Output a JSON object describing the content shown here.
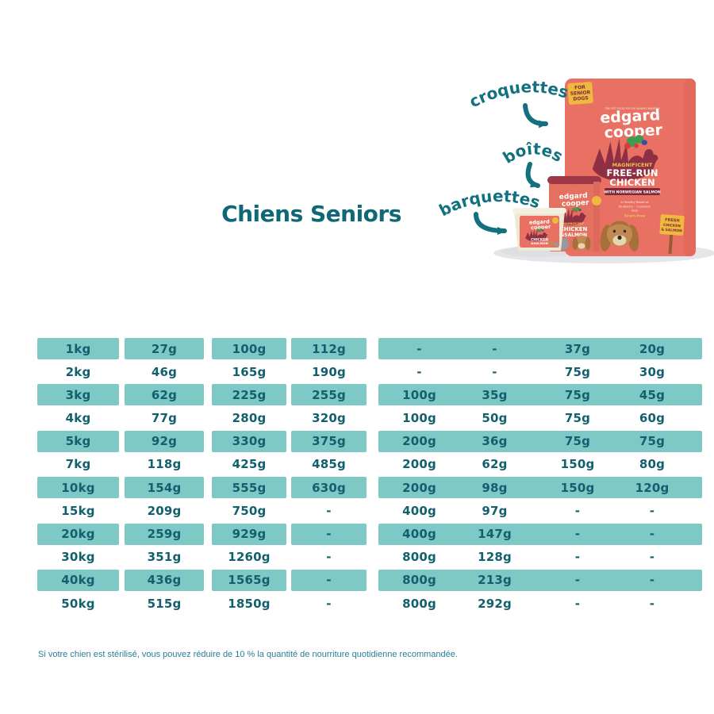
{
  "title": "Chiens Seniors",
  "footnote": "Si votre chien est stérilisé, vous pouvez réduire de 10 % la quantité de nourriture quotidienne recommandée.",
  "labels": {
    "croquettes": "croquettes",
    "boites": "boîtes",
    "barquettes": "barquettes"
  },
  "products": {
    "bag": {
      "badge_line1": "FOR",
      "badge_line2": "SENIOR",
      "badge_line3": "DOGS",
      "tagline": "THE PET FOOD YOU'VE ALWAYS WANTED",
      "brand_line1": "edgard",
      "brand_line2": "cooper",
      "magnificent": "MAGNIFICENT",
      "name_line1": "FREE-RUN",
      "name_line2": "CHICKEN",
      "subtitle": "WITH NORWEGIAN SALMON",
      "claim_line1": "a Healthy Boost of",
      "claim_line2": "blueberry · cranberry",
      "claim_line3": "· kale ·",
      "grain_free": "Grain-free",
      "sign_line1": "FRESH",
      "sign_line2": "CHICKEN",
      "sign_line3": "& SALMON"
    },
    "can": {
      "brand_line1": "edgard",
      "brand_line2": "cooper",
      "magnificent": "MAGNIFICENT",
      "name_line1": "CHICKEN",
      "name_line2": "&SALMON"
    },
    "tray": {
      "brand_line1": "edgard",
      "brand_line2": "cooper",
      "name_line1": "CHICKEN",
      "name_line2": "&SALMON"
    }
  },
  "table": {
    "rows": [
      [
        "1kg",
        "27g",
        "100g",
        "112g",
        "-",
        "-",
        "37g",
        "20g"
      ],
      [
        "2kg",
        "46g",
        "165g",
        "190g",
        "-",
        "-",
        "75g",
        "30g"
      ],
      [
        "3kg",
        "62g",
        "225g",
        "255g",
        "100g",
        "35g",
        "75g",
        "45g"
      ],
      [
        "4kg",
        "77g",
        "280g",
        "320g",
        "100g",
        "50g",
        "75g",
        "60g"
      ],
      [
        "5kg",
        "92g",
        "330g",
        "375g",
        "200g",
        "36g",
        "75g",
        "75g"
      ],
      [
        "7kg",
        "118g",
        "425g",
        "485g",
        "200g",
        "62g",
        "150g",
        "80g"
      ],
      [
        "10kg",
        "154g",
        "555g",
        "630g",
        "200g",
        "98g",
        "150g",
        "120g"
      ],
      [
        "15kg",
        "209g",
        "750g",
        "-",
        "400g",
        "97g",
        "-",
        "-"
      ],
      [
        "20kg",
        "259g",
        "929g",
        "-",
        "400g",
        "147g",
        "-",
        "-"
      ],
      [
        "30kg",
        "351g",
        "1260g",
        "-",
        "800g",
        "128g",
        "-",
        "-"
      ],
      [
        "40kg",
        "436g",
        "1565g",
        "-",
        "800g",
        "213g",
        "-",
        "-"
      ],
      [
        "50kg",
        "515g",
        "1850g",
        "-",
        "800g",
        "292g",
        "-",
        "-"
      ]
    ]
  },
  "colors": {
    "cell_teal": "#7EC8C5",
    "table_text": "#12606D",
    "accent_teal": "#13707E",
    "footnote_teal": "#2B7D96",
    "coral": "#E87163",
    "maroon": "#8E2F44",
    "yellow": "#EFB93F"
  }
}
